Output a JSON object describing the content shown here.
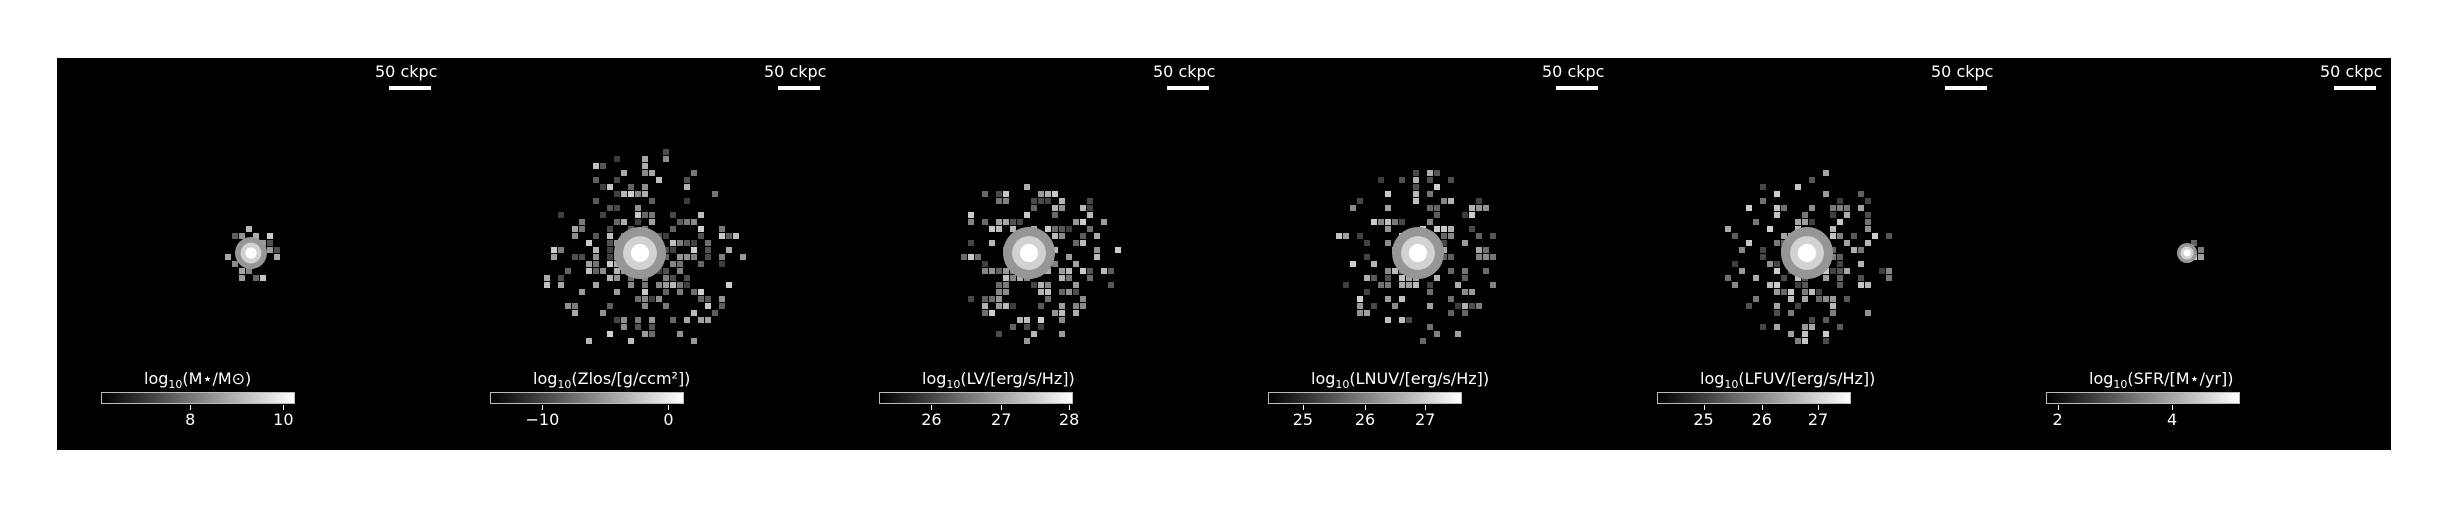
{
  "panels": [
    {
      "scale_label": "50 ckpc",
      "cb_main": "log",
      "cb_sub": "10",
      "cb_rest": "(M⋆/M⊙)",
      "ticks": [
        "8",
        "10"
      ],
      "tick_pos": [
        0.46,
        0.94
      ],
      "spread": 0.18,
      "count": 40,
      "seed": 3
    },
    {
      "scale_label": "50 ckpc",
      "cb_main": "log",
      "cb_sub": "10",
      "cb_rest": "(Zlos/[g/ccm²])",
      "ticks": [
        "−10",
        "0"
      ],
      "tick_pos": [
        0.27,
        0.92
      ],
      "spread": 0.85,
      "count": 260,
      "seed": 7
    },
    {
      "scale_label": "50 ckpc",
      "cb_main": "log",
      "cb_sub": "10",
      "cb_rest": "(LV/[erg/s/Hz])",
      "ticks": [
        "26",
        "27",
        "28"
      ],
      "tick_pos": [
        0.27,
        0.63,
        0.98
      ],
      "spread": 0.7,
      "count": 180,
      "seed": 11
    },
    {
      "scale_label": "50 ckpc",
      "cb_main": "log",
      "cb_sub": "10",
      "cb_rest": "(LNUV/[erg/s/Hz])",
      "ticks": [
        "25",
        "26",
        "27"
      ],
      "tick_pos": [
        0.18,
        0.5,
        0.81
      ],
      "spread": 0.7,
      "count": 180,
      "seed": 13
    },
    {
      "scale_label": "50 ckpc",
      "cb_main": "log",
      "cb_sub": "10",
      "cb_rest": "(LFUV/[erg/s/Hz])",
      "ticks": [
        "25",
        "26",
        "27"
      ],
      "tick_pos": [
        0.24,
        0.54,
        0.83
      ],
      "spread": 0.7,
      "count": 180,
      "seed": 17
    },
    {
      "scale_label": "50 ckpc",
      "cb_main": "log",
      "cb_sub": "10",
      "cb_rest": "(SFR/[M⋆/yr])",
      "ticks": [
        "2",
        "4"
      ],
      "tick_pos": [
        0.06,
        0.65
      ],
      "spread": 0.06,
      "count": 6,
      "seed": 19
    }
  ]
}
